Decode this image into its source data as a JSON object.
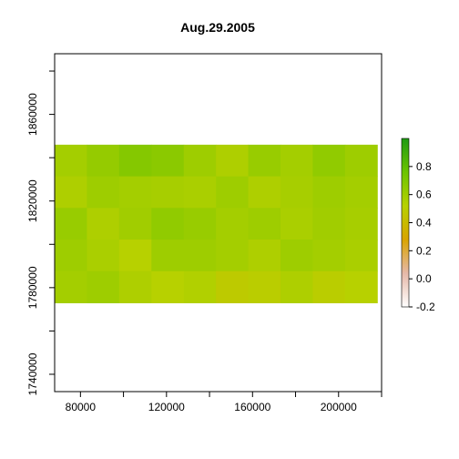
{
  "chart_data": {
    "type": "heatmap",
    "title": "Aug.29.2005",
    "xlabel": "",
    "ylabel": "",
    "x_ticks": [
      80000,
      120000,
      160000,
      200000
    ],
    "y_ticks": [
      1740000,
      1780000,
      1820000,
      1860000
    ],
    "xlim": [
      68000,
      220000
    ],
    "ylim": [
      1732000,
      1888000
    ],
    "raster_extent": {
      "x": [
        68000,
        218000
      ],
      "y": [
        1773000,
        1846000
      ]
    },
    "legend": {
      "placement": "right",
      "range": [
        -0.2,
        1.0
      ],
      "ticks": [
        -0.2,
        0.0,
        0.2,
        0.4,
        0.6,
        0.8
      ],
      "colors": [
        "#ffffff",
        "#e6b8a8",
        "#d9a400",
        "#b7d100",
        "#6cc400",
        "#1f9a14"
      ]
    },
    "raster_grid": {
      "cols": 10,
      "rows": 5,
      "values": [
        [
          0.58,
          0.63,
          0.68,
          0.66,
          0.6,
          0.55,
          0.62,
          0.58,
          0.64,
          0.6
        ],
        [
          0.55,
          0.6,
          0.58,
          0.57,
          0.56,
          0.6,
          0.55,
          0.57,
          0.6,
          0.58
        ],
        [
          0.62,
          0.55,
          0.59,
          0.64,
          0.62,
          0.58,
          0.6,
          0.56,
          0.59,
          0.57
        ],
        [
          0.6,
          0.56,
          0.52,
          0.6,
          0.6,
          0.58,
          0.55,
          0.6,
          0.58,
          0.56
        ],
        [
          0.58,
          0.6,
          0.55,
          0.52,
          0.54,
          0.48,
          0.5,
          0.55,
          0.5,
          0.52
        ]
      ]
    }
  }
}
